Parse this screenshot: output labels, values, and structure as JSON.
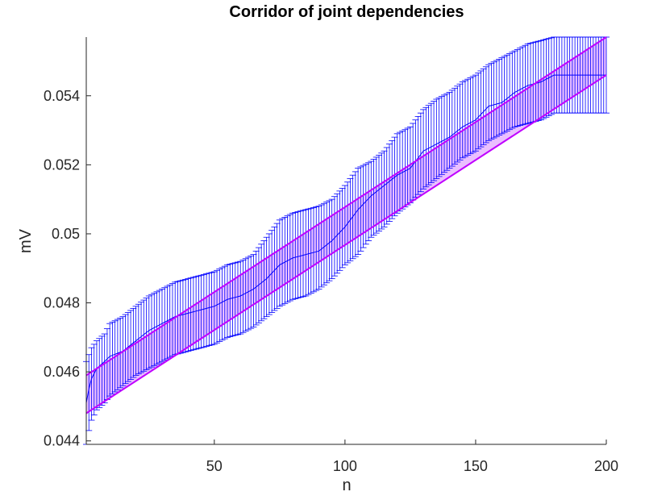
{
  "chart_data": {
    "type": "line",
    "title": "Corridor of joint dependencies",
    "xlabel": "n",
    "ylabel": "mV",
    "xlim": [
      1,
      200
    ],
    "ylim": [
      0.0439,
      0.0557
    ],
    "xticks": [
      50,
      100,
      150,
      200
    ],
    "xtick_labels": [
      "50",
      "100",
      "150",
      "200"
    ],
    "yticks": [
      0.044,
      0.046,
      0.048,
      0.05,
      0.052,
      0.054
    ],
    "ytick_labels": [
      "0.044",
      "0.046",
      "0.048",
      "0.05",
      "0.052",
      "0.054"
    ],
    "grid": false,
    "corridor": {
      "upper": {
        "x": [
          1,
          200
        ],
        "y": [
          0.0459,
          0.0557
        ]
      },
      "lower": {
        "x": [
          1,
          200
        ],
        "y": [
          0.0448,
          0.0546
        ]
      },
      "color": "#c000ff",
      "fill_color": "#d88bff"
    },
    "series": [
      {
        "x": [
          1,
          2,
          3,
          5,
          8,
          10,
          15,
          20,
          25,
          30,
          35,
          40,
          45,
          50,
          55,
          60,
          65,
          70,
          75,
          80,
          85,
          90,
          95,
          100,
          105,
          110,
          115,
          120,
          125,
          130,
          135,
          140,
          145,
          150,
          155,
          160,
          165,
          170,
          175,
          180,
          185,
          190,
          195,
          200
        ],
        "center": [
          0.0451,
          0.0455,
          0.0458,
          0.0461,
          0.0463,
          0.04645,
          0.0466,
          0.0469,
          0.0472,
          0.0474,
          0.0476,
          0.0477,
          0.0478,
          0.0479,
          0.0481,
          0.0482,
          0.0484,
          0.0487,
          0.0491,
          0.0493,
          0.0494,
          0.0495,
          0.0498,
          0.0502,
          0.0507,
          0.0511,
          0.0514,
          0.0517,
          0.0519,
          0.0524,
          0.0526,
          0.0528,
          0.0531,
          0.0533,
          0.0537,
          0.0538,
          0.0541,
          0.0543,
          0.0544,
          0.0546,
          0.0546,
          0.0546,
          0.0546,
          0.0546
        ],
        "upper": [
          0.0463,
          0.0465,
          0.0467,
          0.0469,
          0.0471,
          0.0474,
          0.0476,
          0.0479,
          0.0482,
          0.0484,
          0.0486,
          0.0487,
          0.0488,
          0.0489,
          0.0491,
          0.0492,
          0.0494,
          0.0499,
          0.0504,
          0.0506,
          0.0507,
          0.0508,
          0.051,
          0.0514,
          0.0519,
          0.0521,
          0.0524,
          0.0529,
          0.0531,
          0.0536,
          0.0539,
          0.0541,
          0.0544,
          0.0546,
          0.0549,
          0.0551,
          0.0553,
          0.0555,
          0.0556,
          0.0557,
          0.0557,
          0.0557,
          0.0557,
          0.0557
        ],
        "lower": [
          0.0439,
          0.0443,
          0.0446,
          0.0449,
          0.0451,
          0.0453,
          0.0456,
          0.0459,
          0.0461,
          0.0463,
          0.0465,
          0.0466,
          0.0467,
          0.0468,
          0.047,
          0.0471,
          0.0473,
          0.0476,
          0.0479,
          0.0481,
          0.0482,
          0.0484,
          0.0487,
          0.0491,
          0.0494,
          0.0499,
          0.0502,
          0.0506,
          0.0509,
          0.0513,
          0.0516,
          0.0519,
          0.0522,
          0.0524,
          0.0527,
          0.0529,
          0.0531,
          0.0532,
          0.0533,
          0.0535,
          0.0535,
          0.0535,
          0.0535,
          0.0535
        ],
        "color": "#0000ff"
      }
    ]
  }
}
